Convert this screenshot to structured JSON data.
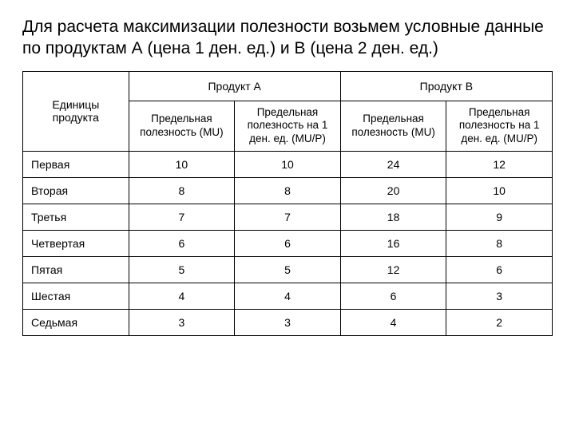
{
  "title": "Для расчета максимизации полезности возьмем условные данные по продуктам А (цена 1 ден. ед.) и В (цена 2 ден. ед.)",
  "table": {
    "header_units": "Единицы продукта",
    "header_product_a": "Продукт А",
    "header_product_b": "Продукт В",
    "sub_mu": "Предельная полезность (MU)",
    "sub_mup": "Предельная полезность на 1 ден. ед. (MU/P)",
    "rows": [
      {
        "label": "Первая",
        "a_mu": "10",
        "a_mup": "10",
        "b_mu": "24",
        "b_mup": "12"
      },
      {
        "label": "Вторая",
        "a_mu": "8",
        "a_mup": "8",
        "b_mu": "20",
        "b_mup": "10"
      },
      {
        "label": "Третья",
        "a_mu": "7",
        "a_mup": "7",
        "b_mu": "18",
        "b_mup": "9"
      },
      {
        "label": "Четвертая",
        "a_mu": "6",
        "a_mup": "6",
        "b_mu": "16",
        "b_mup": "8"
      },
      {
        "label": "Пятая",
        "a_mu": "5",
        "a_mup": "5",
        "b_mu": "12",
        "b_mup": "6"
      },
      {
        "label": "Шестая",
        "a_mu": "4",
        "a_mup": "4",
        "b_mu": "6",
        "b_mup": "3"
      },
      {
        "label": "Седьмая",
        "a_mu": "3",
        "a_mup": "3",
        "b_mu": "4",
        "b_mup": "2"
      }
    ]
  },
  "style": {
    "font_family": "Arial, sans-serif",
    "title_fontsize": 21,
    "cell_fontsize": 14,
    "border_color": "#000000",
    "background": "#ffffff",
    "text_color": "#000000"
  }
}
